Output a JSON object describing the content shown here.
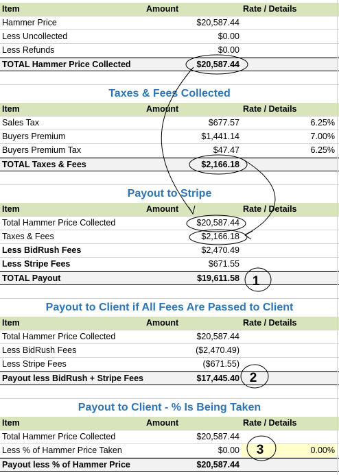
{
  "columns": {
    "item": "Item",
    "amount": "Amount",
    "rate": "Rate / Details"
  },
  "hammer": {
    "rows": [
      {
        "item": "Hammer Price",
        "amount": "$20,587.44",
        "rate": ""
      },
      {
        "item": "Less Uncollected",
        "amount": "$0.00",
        "rate": ""
      },
      {
        "item": "Less Refunds",
        "amount": "$0.00",
        "rate": ""
      }
    ],
    "total": {
      "item": "TOTAL Hammer Price Collected",
      "amount": "$20,587.44"
    }
  },
  "taxes": {
    "title": "Taxes & Fees Collected",
    "rows": [
      {
        "item": "Sales Tax",
        "amount": "$677.57",
        "rate": "6.25%"
      },
      {
        "item": "Buyers Premium",
        "amount": "$1,441.14",
        "rate": "7.00%"
      },
      {
        "item": "Buyers Premium Tax",
        "amount": "$47.47",
        "rate": "6.25%"
      }
    ],
    "total": {
      "item": "TOTAL Taxes & Fees",
      "amount": "$2,166.18"
    }
  },
  "stripe": {
    "title": "Payout to Stripe",
    "rows": [
      {
        "item": "Total Hammer Price Collected",
        "amount": "$20,587.44"
      },
      {
        "item": "Taxes & Fees",
        "amount": "$2,166.18"
      },
      {
        "item": "Less BidRush Fees",
        "amount": "$2,470.49"
      },
      {
        "item": "Less Stripe Fees",
        "amount": "$671.55"
      }
    ],
    "total": {
      "item": "TOTAL Payout",
      "amount": "$19,611.58"
    },
    "marker": "1"
  },
  "client_all": {
    "title": "Payout to Client if All Fees Are Passed to Client",
    "rows": [
      {
        "item": "Total Hammer Price Collected",
        "amount": "$20,587.44"
      },
      {
        "item": "Less BidRush Fees",
        "amount": "($2,470.49)"
      },
      {
        "item": "Less Stripe Fees",
        "amount": "($671.55)"
      }
    ],
    "total": {
      "item": "Payout less BidRush + Stripe Fees",
      "amount": "$17,445.40"
    },
    "marker": "2"
  },
  "client_pct": {
    "title": "Payout to Client - % Is Being Taken",
    "rows": [
      {
        "item": "Total Hammer Price Collected",
        "amount": "$20,587.44",
        "rate": ""
      },
      {
        "item": "Less % of Hammer Price Taken",
        "amount": "$0.00",
        "rate": "0.00%"
      }
    ],
    "total": {
      "item": "Payout less % of Hammer Price",
      "amount": "$20,587.44"
    },
    "marker": "3"
  }
}
